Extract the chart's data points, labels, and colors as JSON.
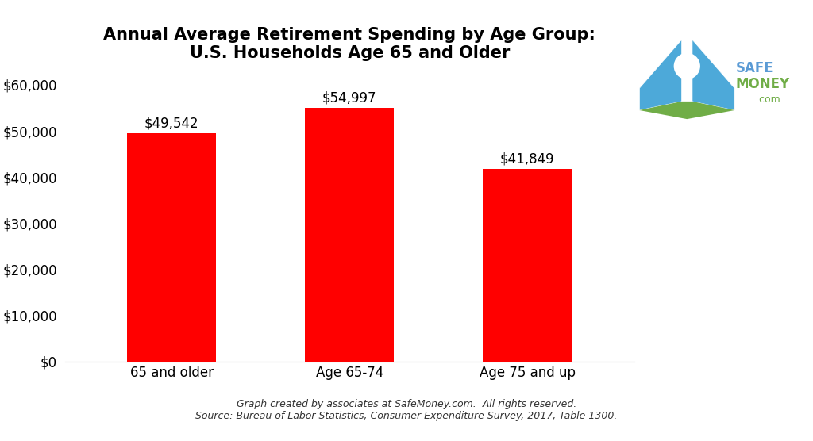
{
  "categories": [
    "65 and older",
    "Age 65-74",
    "Age 75 and up"
  ],
  "values": [
    49542,
    54997,
    41849
  ],
  "bar_color": "#ff0000",
  "bar_width": 0.5,
  "title_line1": "Annual Average Retirement Spending by Age Group:",
  "title_line2": "U.S. Households Age 65 and Older",
  "title_fontsize": 15,
  "tick_fontsize": 12,
  "annotation_fontsize": 12,
  "ylim": [
    0,
    65000
  ],
  "yticks": [
    0,
    10000,
    20000,
    30000,
    40000,
    50000,
    60000
  ],
  "background_color": "#ffffff",
  "footer_line1": "Graph created by associates at SafeMoney.com.  All rights reserved.",
  "footer_line2": "Source: Bureau of Labor Statistics, Consumer Expenditure Survey, 2017, Table 1300.",
  "footer_fontsize": 9,
  "spine_color": "#aaaaaa",
  "logo_safe_color": "#5b9bd5",
  "logo_money_color": "#70ad47",
  "logo_com_color": "#70ad47"
}
